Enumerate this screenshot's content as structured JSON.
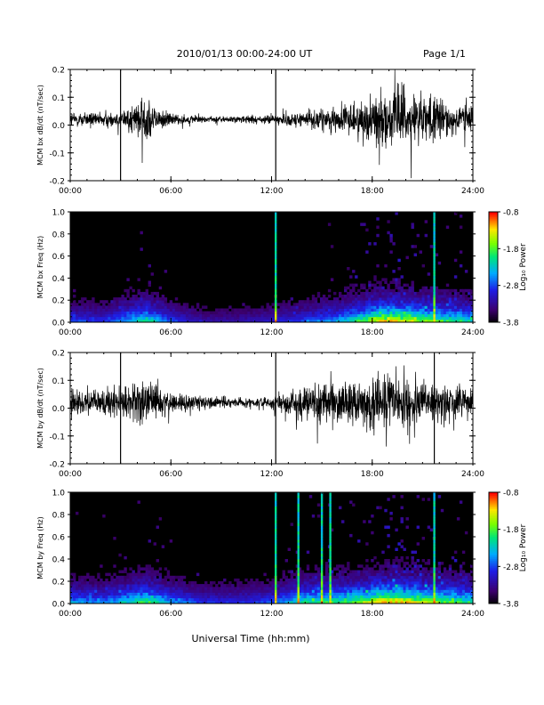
{
  "header": {
    "title": "2010/01/13  00:00-24:00 UT",
    "page": "Page 1/1"
  },
  "footer": {
    "xlabel": "Universal Time (hh:mm)"
  },
  "chart_data": [
    {
      "type": "line",
      "panel": "bx-waveform",
      "ylabel": "MCM bx dB/dt (nT/sec)",
      "xlim": [
        0,
        24
      ],
      "ylim": [
        -0.2,
        0.2
      ],
      "x_ticks": [
        "00:00",
        "06:00",
        "12:00",
        "18:00",
        "24:00"
      ],
      "y_ticks": [
        "-0.2",
        "-0.1",
        "0.0",
        "0.1",
        "0.2"
      ],
      "y_tick_values": [
        -0.2,
        -0.1,
        0.0,
        0.1,
        0.2
      ],
      "series": [
        {
          "x": [
            0,
            1,
            2,
            3,
            4,
            4.5,
            5,
            6,
            7,
            8,
            9,
            10,
            11,
            12,
            13,
            14,
            15,
            16,
            17,
            18,
            19,
            20,
            21,
            22,
            23,
            24
          ],
          "amplitude": [
            0.06,
            0.05,
            0.05,
            0.06,
            0.12,
            0.2,
            0.1,
            0.05,
            0.03,
            0.025,
            0.025,
            0.025,
            0.03,
            0.035,
            0.05,
            0.06,
            0.08,
            0.09,
            0.12,
            0.18,
            0.2,
            0.2,
            0.18,
            0.15,
            0.13,
            0.12
          ]
        }
      ],
      "spikes_x": [
        3.0,
        12.25
      ]
    },
    {
      "type": "heatmap",
      "panel": "bx-spectrogram",
      "ylabel": "MCM bx Freq (Hz)",
      "xlim": [
        0,
        24
      ],
      "ylim": [
        0,
        1.0
      ],
      "x_ticks": [
        "00:00",
        "06:00",
        "12:00",
        "18:00",
        "24:00"
      ],
      "y_ticks": [
        "0.0",
        "0.2",
        "0.4",
        "0.6",
        "0.8",
        "1.0"
      ],
      "y_tick_values": [
        0.0,
        0.2,
        0.4,
        0.6,
        0.8,
        1.0
      ],
      "colorbar": {
        "label": "Log₁₀ Power",
        "ticks": [
          "-0.8",
          "-1.8",
          "-2.8",
          "-3.8"
        ],
        "range": [
          -3.8,
          -0.8
        ]
      },
      "activity_x": [
        0,
        2,
        4,
        4.5,
        6,
        8,
        10,
        12,
        14,
        16,
        17,
        18,
        19,
        20,
        22,
        24
      ],
      "activity": [
        0.35,
        0.3,
        0.55,
        0.6,
        0.35,
        0.2,
        0.2,
        0.25,
        0.35,
        0.45,
        0.6,
        0.75,
        0.85,
        0.8,
        0.65,
        0.55
      ],
      "lines_x": [
        12.25,
        21.7
      ]
    },
    {
      "type": "line",
      "panel": "by-waveform",
      "ylabel": "MCM by dB/dt (nT/sec)",
      "xlim": [
        0,
        24
      ],
      "ylim": [
        -0.2,
        0.2
      ],
      "x_ticks": [
        "00:00",
        "06:00",
        "12:00",
        "18:00",
        "24:00"
      ],
      "y_ticks": [
        "-0.2",
        "-0.1",
        "0.0",
        "0.1",
        "0.2"
      ],
      "y_tick_values": [
        -0.2,
        -0.1,
        0.0,
        0.1,
        0.2
      ],
      "series": [
        {
          "x": [
            0,
            1,
            2,
            3,
            4,
            4.5,
            5,
            6,
            7,
            8,
            9,
            10,
            11,
            12,
            13,
            14,
            15,
            16,
            17,
            18,
            19,
            20,
            21,
            22,
            23,
            24
          ],
          "amplitude": [
            0.1,
            0.08,
            0.09,
            0.1,
            0.15,
            0.2,
            0.12,
            0.08,
            0.06,
            0.05,
            0.04,
            0.035,
            0.04,
            0.05,
            0.09,
            0.12,
            0.14,
            0.15,
            0.17,
            0.18,
            0.2,
            0.18,
            0.16,
            0.15,
            0.14,
            0.13
          ]
        }
      ],
      "spikes_x": [
        3.0,
        12.25,
        21.7
      ]
    },
    {
      "type": "heatmap",
      "panel": "by-spectrogram",
      "ylabel": "MCM by Freq (Hz)",
      "xlim": [
        0,
        24
      ],
      "ylim": [
        0,
        1.0
      ],
      "x_ticks": [
        "00:00",
        "06:00",
        "12:00",
        "18:00",
        "24:00"
      ],
      "y_ticks": [
        "0.0",
        "0.2",
        "0.4",
        "0.6",
        "0.8",
        "1.0"
      ],
      "y_tick_values": [
        0.0,
        0.2,
        0.4,
        0.6,
        0.8,
        1.0
      ],
      "colorbar": {
        "label": "Log₁₀ Power",
        "ticks": [
          "-0.8",
          "-1.8",
          "-2.8",
          "-3.8"
        ],
        "range": [
          -3.8,
          -0.8
        ]
      },
      "activity_x": [
        0,
        2,
        4,
        4.5,
        6,
        8,
        10,
        12,
        14,
        16,
        17,
        18,
        19,
        20,
        22,
        24
      ],
      "activity": [
        0.45,
        0.4,
        0.6,
        0.65,
        0.45,
        0.3,
        0.3,
        0.35,
        0.6,
        0.65,
        0.7,
        0.8,
        0.9,
        0.85,
        0.7,
        0.6
      ],
      "lines_x": [
        12.25,
        13.6,
        15.0,
        15.5,
        21.7
      ]
    }
  ]
}
